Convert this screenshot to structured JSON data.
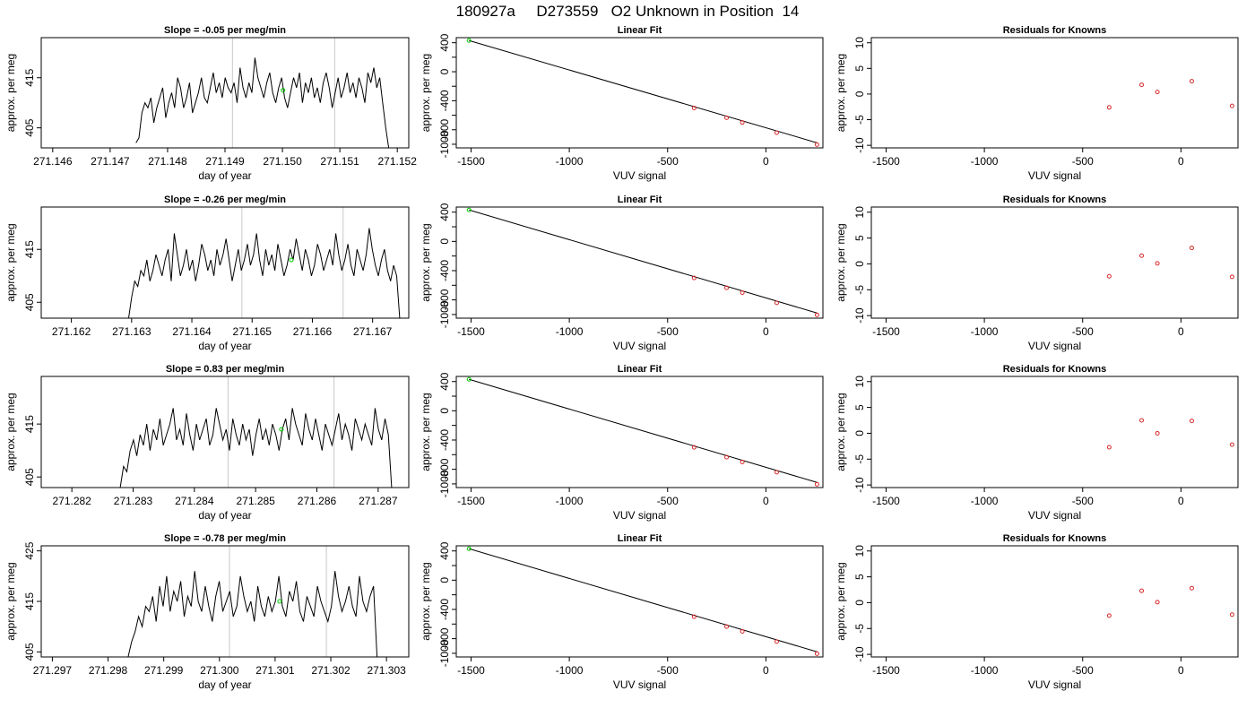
{
  "title": "180927a     D273559   O2 Unknown in Position  14",
  "chart_data": [
    {
      "type": "line",
      "row": 1,
      "title": "Slope =  -0.05  per meg/min",
      "xlabel": "day of year",
      "ylabel": "approx. per meg",
      "xlim": [
        271.1458,
        271.1522
      ],
      "ylim": [
        401,
        423
      ],
      "xticks": [
        "271.146",
        "271.147",
        "271.148",
        "271.149",
        "271.150",
        "271.151",
        "271.152"
      ],
      "yticks": [
        "405",
        "415"
      ],
      "vlines": [
        271.14913,
        271.15091
      ],
      "series": [
        {
          "x_start": 271.14745,
          "x_end": 271.15185,
          "values": [
            402,
            403,
            408,
            410,
            409,
            411,
            406,
            409,
            411,
            413,
            407,
            410,
            412,
            409,
            415,
            413,
            409,
            411,
            414,
            408,
            410,
            412,
            415,
            411,
            410,
            413,
            416,
            412,
            414,
            411,
            415,
            413,
            412,
            414,
            410,
            417,
            413,
            411,
            414,
            412,
            419,
            415,
            413,
            411,
            414,
            416,
            412,
            410,
            413,
            415,
            411,
            409,
            412,
            415,
            413,
            416,
            410,
            414,
            412,
            415,
            411,
            413,
            410,
            414,
            416,
            413,
            409,
            412,
            415,
            411,
            413,
            416,
            412,
            414,
            411,
            415,
            413,
            410,
            416,
            414,
            417,
            413,
            415,
            410,
            405,
            401
          ]
        }
      ],
      "unknown_point": {
        "x": 271.15001,
        "y": 412.5
      }
    },
    {
      "type": "line",
      "row": 2,
      "title": "Slope =  -0.26  per meg/min",
      "xlabel": "day of year",
      "ylabel": "approx. per meg",
      "xlim": [
        271.1615,
        271.1676
      ],
      "ylim": [
        402,
        423
      ],
      "xticks": [
        "271.162",
        "271.163",
        "271.164",
        "271.165",
        "271.166",
        "271.167"
      ],
      "yticks": [
        "405",
        "415"
      ],
      "vlines": [
        271.16483,
        271.16651
      ],
      "series": [
        {
          "x_start": 271.16295,
          "x_end": 271.16745,
          "values": [
            402,
            406,
            409,
            408,
            411,
            410,
            413,
            409,
            411,
            414,
            412,
            410,
            413,
            415,
            409,
            418,
            414,
            410,
            412,
            415,
            411,
            413,
            409,
            412,
            416,
            414,
            411,
            413,
            410,
            415,
            412,
            414,
            417,
            413,
            409,
            412,
            415,
            411,
            413,
            416,
            412,
            414,
            418,
            413,
            410,
            415,
            412,
            414,
            411,
            416,
            413,
            410,
            412,
            415,
            413,
            417,
            414,
            411,
            415,
            413,
            410,
            412,
            416,
            414,
            411,
            413,
            415,
            412,
            418,
            414,
            411,
            413,
            416,
            412,
            410,
            415,
            413,
            411,
            414,
            419,
            415,
            412,
            410,
            413,
            415,
            411,
            409,
            412,
            410,
            402
          ]
        }
      ],
      "unknown_point": {
        "x": 271.16565,
        "y": 413
      }
    },
    {
      "type": "line",
      "row": 3,
      "title": "Slope =  0.83  per meg/min",
      "xlabel": "day of year",
      "ylabel": "approx. per meg",
      "xlim": [
        271.2815,
        271.2875
      ],
      "ylim": [
        403,
        424
      ],
      "xticks": [
        "271.282",
        "271.283",
        "271.284",
        "271.285",
        "271.286",
        "271.287"
      ],
      "yticks": [
        "405",
        "415"
      ],
      "vlines": [
        271.28455,
        271.28628
      ],
      "series": [
        {
          "x_start": 271.28279,
          "x_end": 271.28722,
          "values": [
            403,
            407,
            406,
            410,
            412,
            409,
            413,
            411,
            415,
            410,
            414,
            412,
            416,
            411,
            413,
            415,
            418,
            412,
            414,
            411,
            417,
            413,
            410,
            415,
            412,
            414,
            416,
            411,
            413,
            418,
            415,
            412,
            414,
            410,
            416,
            413,
            411,
            415,
            412,
            414,
            409,
            413,
            416,
            412,
            414,
            411,
            415,
            413,
            410,
            414,
            416,
            412,
            418,
            415,
            413,
            411,
            417,
            414,
            412,
            416,
            413,
            410,
            415,
            413,
            411,
            414,
            417,
            412,
            415,
            413,
            410,
            416,
            414,
            412,
            415,
            413,
            411,
            418,
            414,
            412,
            416,
            413,
            403
          ]
        }
      ],
      "unknown_point": {
        "x": 271.28542,
        "y": 414
      }
    },
    {
      "type": "line",
      "row": 4,
      "title": "Slope =  -0.78  per meg/min",
      "xlabel": "day of year",
      "ylabel": "approx. per meg",
      "xlim": [
        271.2968,
        271.3034
      ],
      "ylim": [
        404,
        426
      ],
      "xticks": [
        "271.297",
        "271.298",
        "271.299",
        "271.300",
        "271.301",
        "271.302",
        "271.303"
      ],
      "yticks": [
        "405",
        "415",
        "425"
      ],
      "vlines": [
        271.30018,
        271.30192
      ],
      "series": [
        {
          "x_start": 271.29836,
          "x_end": 271.30283,
          "values": [
            404,
            407,
            409,
            412,
            410,
            414,
            413,
            416,
            411,
            418,
            414,
            420,
            413,
            417,
            415,
            419,
            412,
            416,
            414,
            421,
            415,
            413,
            418,
            414,
            411,
            416,
            419,
            413,
            415,
            417,
            412,
            414,
            420,
            416,
            413,
            415,
            411,
            418,
            414,
            412,
            416,
            413,
            415,
            420,
            414,
            412,
            417,
            415,
            419,
            413,
            411,
            416,
            414,
            412,
            418,
            415,
            413,
            411,
            414,
            421,
            416,
            413,
            415,
            418,
            414,
            412,
            420,
            415,
            413,
            416,
            418,
            404
          ]
        }
      ],
      "unknown_point": {
        "x": 271.30108,
        "y": 415
      }
    },
    {
      "type": "line",
      "row": 1,
      "title": "Linear Fit",
      "xlabel": "VUV signal",
      "ylabel": "approx. per meg",
      "xlim": [
        -1575,
        290
      ],
      "ylim": [
        -1050,
        470
      ],
      "xticks": [
        "-1500",
        "-1000",
        "-500",
        "0"
      ],
      "yticks": [
        "-1000",
        "-800",
        "-400",
        "0",
        "400"
      ],
      "fit_line": {
        "x": [
          -1510,
          260
        ],
        "y": [
          430,
          -980
        ]
      },
      "known_points": {
        "x": [
          -365,
          -200,
          -120,
          55,
          260
        ],
        "y": [
          -500,
          -635,
          -700,
          -840,
          -1005
        ]
      },
      "unknown_point": {
        "x": -1510,
        "y": 430
      }
    },
    {
      "type": "line",
      "row": 2,
      "title": "Linear Fit",
      "xlabel": "VUV signal",
      "ylabel": "approx. per meg",
      "xlim": [
        -1575,
        290
      ],
      "ylim": [
        -1050,
        470
      ],
      "xticks": [
        "-1500",
        "-1000",
        "-500",
        "0"
      ],
      "yticks": [
        "-1000",
        "-800",
        "-400",
        "0",
        "400"
      ],
      "fit_line": {
        "x": [
          -1510,
          260
        ],
        "y": [
          430,
          -980
        ]
      },
      "known_points": {
        "x": [
          -365,
          -200,
          -120,
          55,
          260
        ],
        "y": [
          -500,
          -635,
          -700,
          -840,
          -1005
        ]
      },
      "unknown_point": {
        "x": -1510,
        "y": 430
      }
    },
    {
      "type": "line",
      "row": 3,
      "title": "Linear Fit",
      "xlabel": "VUV signal",
      "ylabel": "approx. per meg",
      "xlim": [
        -1575,
        290
      ],
      "ylim": [
        -1050,
        470
      ],
      "xticks": [
        "-1500",
        "-1000",
        "-500",
        "0"
      ],
      "yticks": [
        "-1000",
        "-800",
        "-400",
        "0",
        "400"
      ],
      "fit_line": {
        "x": [
          -1510,
          260
        ],
        "y": [
          430,
          -980
        ]
      },
      "known_points": {
        "x": [
          -365,
          -200,
          -120,
          55,
          260
        ],
        "y": [
          -500,
          -635,
          -700,
          -840,
          -1005
        ]
      },
      "unknown_point": {
        "x": -1510,
        "y": 430
      }
    },
    {
      "type": "line",
      "row": 4,
      "title": "Linear Fit",
      "xlabel": "VUV signal",
      "ylabel": "approx. per meg",
      "xlim": [
        -1575,
        290
      ],
      "ylim": [
        -1050,
        470
      ],
      "xticks": [
        "-1500",
        "-1000",
        "-500",
        "0"
      ],
      "yticks": [
        "-1000",
        "-800",
        "-400",
        "0",
        "400"
      ],
      "fit_line": {
        "x": [
          -1510,
          260
        ],
        "y": [
          430,
          -980
        ]
      },
      "known_points": {
        "x": [
          -365,
          -200,
          -120,
          55,
          260
        ],
        "y": [
          -500,
          -635,
          -700,
          -840,
          -1005
        ]
      },
      "unknown_point": {
        "x": -1510,
        "y": 430
      }
    },
    {
      "type": "scatter",
      "row": 1,
      "title": "Residuals for Knowns",
      "xlabel": "VUV signal",
      "ylabel": "approx. per meg",
      "xlim": [
        -1575,
        290
      ],
      "ylim": [
        -10.5,
        11
      ],
      "xticks": [
        "-1500",
        "-1000",
        "-500",
        "0"
      ],
      "yticks": [
        "-10",
        "-5",
        "0",
        "5",
        "10"
      ],
      "points": {
        "x": [
          -365,
          -200,
          -120,
          55,
          260
        ],
        "y": [
          -2.6,
          1.8,
          0.4,
          2.5,
          -2.3
        ]
      }
    },
    {
      "type": "scatter",
      "row": 2,
      "title": "Residuals for Knowns",
      "xlabel": "VUV signal",
      "ylabel": "approx. per meg",
      "xlim": [
        -1575,
        290
      ],
      "ylim": [
        -10.5,
        11
      ],
      "xticks": [
        "-1500",
        "-1000",
        "-500",
        "0"
      ],
      "yticks": [
        "-10",
        "-5",
        "0",
        "5",
        "10"
      ],
      "points": {
        "x": [
          -365,
          -200,
          -120,
          55,
          260
        ],
        "y": [
          -2.4,
          1.6,
          0.1,
          3.1,
          -2.5
        ]
      }
    },
    {
      "type": "scatter",
      "row": 3,
      "title": "Residuals for Knowns",
      "xlabel": "VUV signal",
      "ylabel": "approx. per meg",
      "xlim": [
        -1575,
        290
      ],
      "ylim": [
        -10.5,
        11
      ],
      "xticks": [
        "-1500",
        "-1000",
        "-500",
        "0"
      ],
      "yticks": [
        "-10",
        "-5",
        "0",
        "5",
        "10"
      ],
      "points": {
        "x": [
          -365,
          -200,
          -120,
          55,
          260
        ],
        "y": [
          -2.7,
          2.5,
          0.0,
          2.4,
          -2.2
        ]
      }
    },
    {
      "type": "scatter",
      "row": 4,
      "title": "Residuals for Knowns",
      "xlabel": "VUV signal",
      "ylabel": "approx. per meg",
      "xlim": [
        -1575,
        290
      ],
      "ylim": [
        -10.5,
        11
      ],
      "xticks": [
        "-1500",
        "-1000",
        "-500",
        "0"
      ],
      "yticks": [
        "-10",
        "-5",
        "0",
        "5",
        "10"
      ],
      "points": {
        "x": [
          -365,
          -200,
          -120,
          55,
          260
        ],
        "y": [
          -2.5,
          2.3,
          0.1,
          2.8,
          -2.3
        ]
      }
    }
  ]
}
